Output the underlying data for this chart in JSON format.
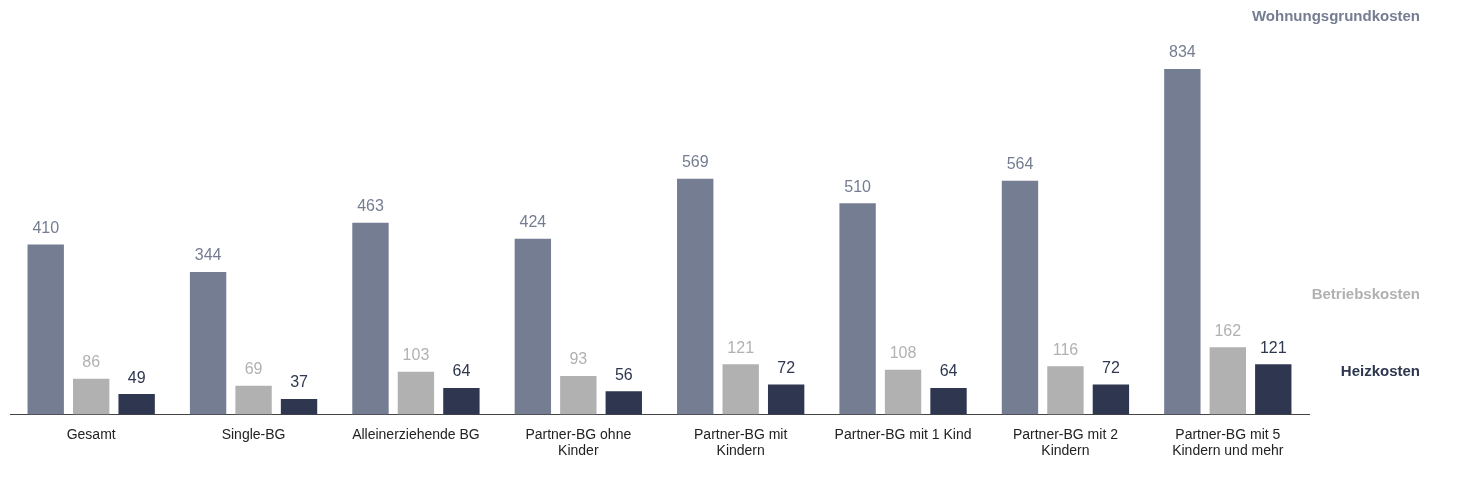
{
  "chart_data": {
    "type": "bar",
    "categories": [
      "Gesamt",
      "Single-BG",
      "Alleinerziehende BG",
      "Partner-BG ohne Kinder",
      "Partner-BG mit Kindern",
      "Partner-BG mit 1 Kind",
      "Partner-BG mit 2 Kindern",
      "Partner-BG mit 5 Kindern und mehr"
    ],
    "series": [
      {
        "name": "Wohnungsgrundkosten",
        "color": "#747d91",
        "values": [
          410,
          344,
          463,
          424,
          569,
          510,
          564,
          834
        ]
      },
      {
        "name": "Betriebskosten",
        "color": "#b1b1b1",
        "values": [
          86,
          69,
          103,
          93,
          121,
          108,
          116,
          162
        ]
      },
      {
        "name": "Heizkosten",
        "color": "#2e374f",
        "values": [
          49,
          37,
          64,
          56,
          72,
          64,
          72,
          121
        ]
      }
    ],
    "data_labels": true,
    "legend": false,
    "grid": false
  }
}
